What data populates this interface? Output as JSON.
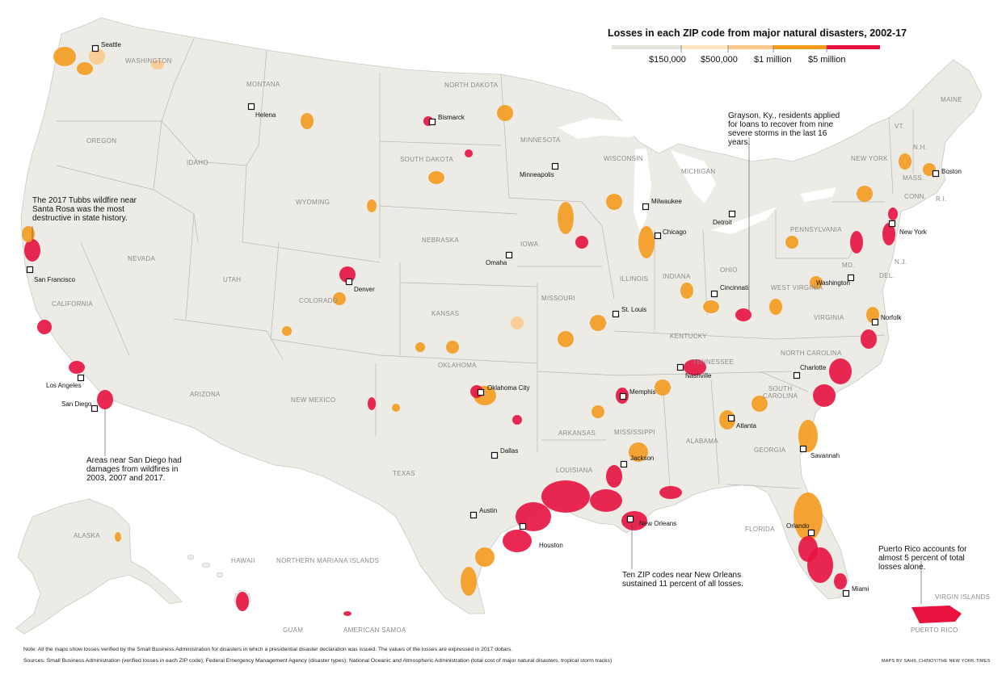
{
  "legend": {
    "title": "Losses in each ZIP code from major natural disasters, 2002-17",
    "ticks": [
      "$150,000",
      "$500,000",
      "$1 million",
      "$5 million"
    ],
    "colors": [
      "#e3e2dc",
      "#fde3be",
      "#fcc98d",
      "#f39b1d",
      "#e8123f"
    ]
  },
  "colors": {
    "land": "#ecebe6",
    "border": "#b7b7b2",
    "ocean": "#ffffff"
  },
  "states": {
    "washington": "WASHINGTON",
    "oregon": "OREGON",
    "california": "CALIFORNIA",
    "nevada": "NEVADA",
    "idaho": "IDAHO",
    "montana": "MONTANA",
    "wyoming": "WYOMING",
    "utah": "UTAH",
    "arizona": "ARIZONA",
    "colorado": "COLORADO",
    "new_mexico": "NEW MEXICO",
    "north_dakota": "NORTH DAKOTA",
    "south_dakota": "SOUTH DAKOTA",
    "nebraska": "NEBRASKA",
    "kansas": "KANSAS",
    "oklahoma": "OKLAHOMA",
    "texas": "TEXAS",
    "minnesota": "MINNESOTA",
    "iowa": "IOWA",
    "missouri": "MISSOURI",
    "arkansas": "ARKANSAS",
    "louisiana": "LOUISIANA",
    "wisconsin": "WISCONSIN",
    "illinois": "ILLINOIS",
    "michigan": "MICHIGAN",
    "indiana": "INDIANA",
    "ohio": "OHIO",
    "kentucky": "KENTUCKY",
    "tennessee": "TENNESSEE",
    "mississippi": "MISSISSIPPI",
    "alabama": "ALABAMA",
    "georgia": "GEORGIA",
    "florida": "FLORIDA",
    "south_carolina": "SOUTH\nCAROLINA",
    "north_carolina": "NORTH CAROLINA",
    "virginia": "VIRGINIA",
    "west_virginia": "WEST VIRGINIA",
    "pennsylvania": "PENNSYLVANIA",
    "new_york": "NEW YORK",
    "maine": "MAINE",
    "vt": "VT.",
    "nh": "N.H.",
    "mass": "MASS.",
    "conn": "CONN.",
    "ri": "R.I.",
    "nj": "N.J.",
    "md": "MD.",
    "del": "DEL.",
    "alaska": "ALASKA",
    "hawaii": "HAWAII",
    "northern_mariana": "NORTHERN MARIANA ISLANDS",
    "guam": "GUAM",
    "american_samoa": "AMERICAN SAMOA",
    "virgin_islands": "VIRGIN ISLANDS",
    "puerto_rico": "PUERTO RICO"
  },
  "cities": {
    "seattle": "Seattle",
    "helena": "Helena",
    "bismarck": "Bismarck",
    "minneapolis": "Minneapolis",
    "san_francisco": "San Francisco",
    "omaha": "Omaha",
    "denver": "Denver",
    "milwaukee": "Milwaukee",
    "detroit": "Detroit",
    "chicago": "Chicago",
    "boston": "Boston",
    "new_york": "New York",
    "washington": "Washington",
    "cincinnati": "Cincinnati",
    "st_louis": "St. Louis",
    "norfolk": "Norfolk",
    "los_angeles": "Los Angeles",
    "san_diego": "San Diego",
    "oklahoma_city": "Oklahoma City",
    "nashville": "Nashville",
    "charlotte": "Charlotte",
    "memphis": "Memphis",
    "atlanta": "Atlanta",
    "dallas": "Dallas",
    "jackson": "Jackson",
    "savannah": "Savannah",
    "austin": "Austin",
    "houston": "Houston",
    "new_orleans": "New Orleans",
    "orlando": "Orlando",
    "miami": "Miami"
  },
  "annotations": {
    "tubbs": "The 2017 Tubbs wildfire near Santa Rosa was the most destructive in state history.",
    "san_diego": "Areas near San Diego had damages from wildfires in 2003, 2007 and 2017.",
    "grayson": "Grayson, Ky., residents applied for loans to recover from nine severe storms in the last 16 years.",
    "new_orleans": "Ten ZIP codes near New Orleans sustained 11 percent of all losses.",
    "puerto_rico": "Puerto Rico accounts for almost 5 percent of total losses alone."
  },
  "footer": {
    "note": "Note: All the maps show losses verified by the Small Business Administration for disasters in which a presidential disaster declaration was issued. The values of the losses are expressed in 2017 dollars.",
    "sources": "Sources: Small Business Administration (verified losses in each ZIP code); Federal Emergency Management Agency (disaster types); National Oceanic and Atmospheric Administration (total cost of major natural disasters, tropical storm tracks)",
    "credit": "MAPS BY SAHIL CHINOY/THE NEW YORK TIMES"
  }
}
